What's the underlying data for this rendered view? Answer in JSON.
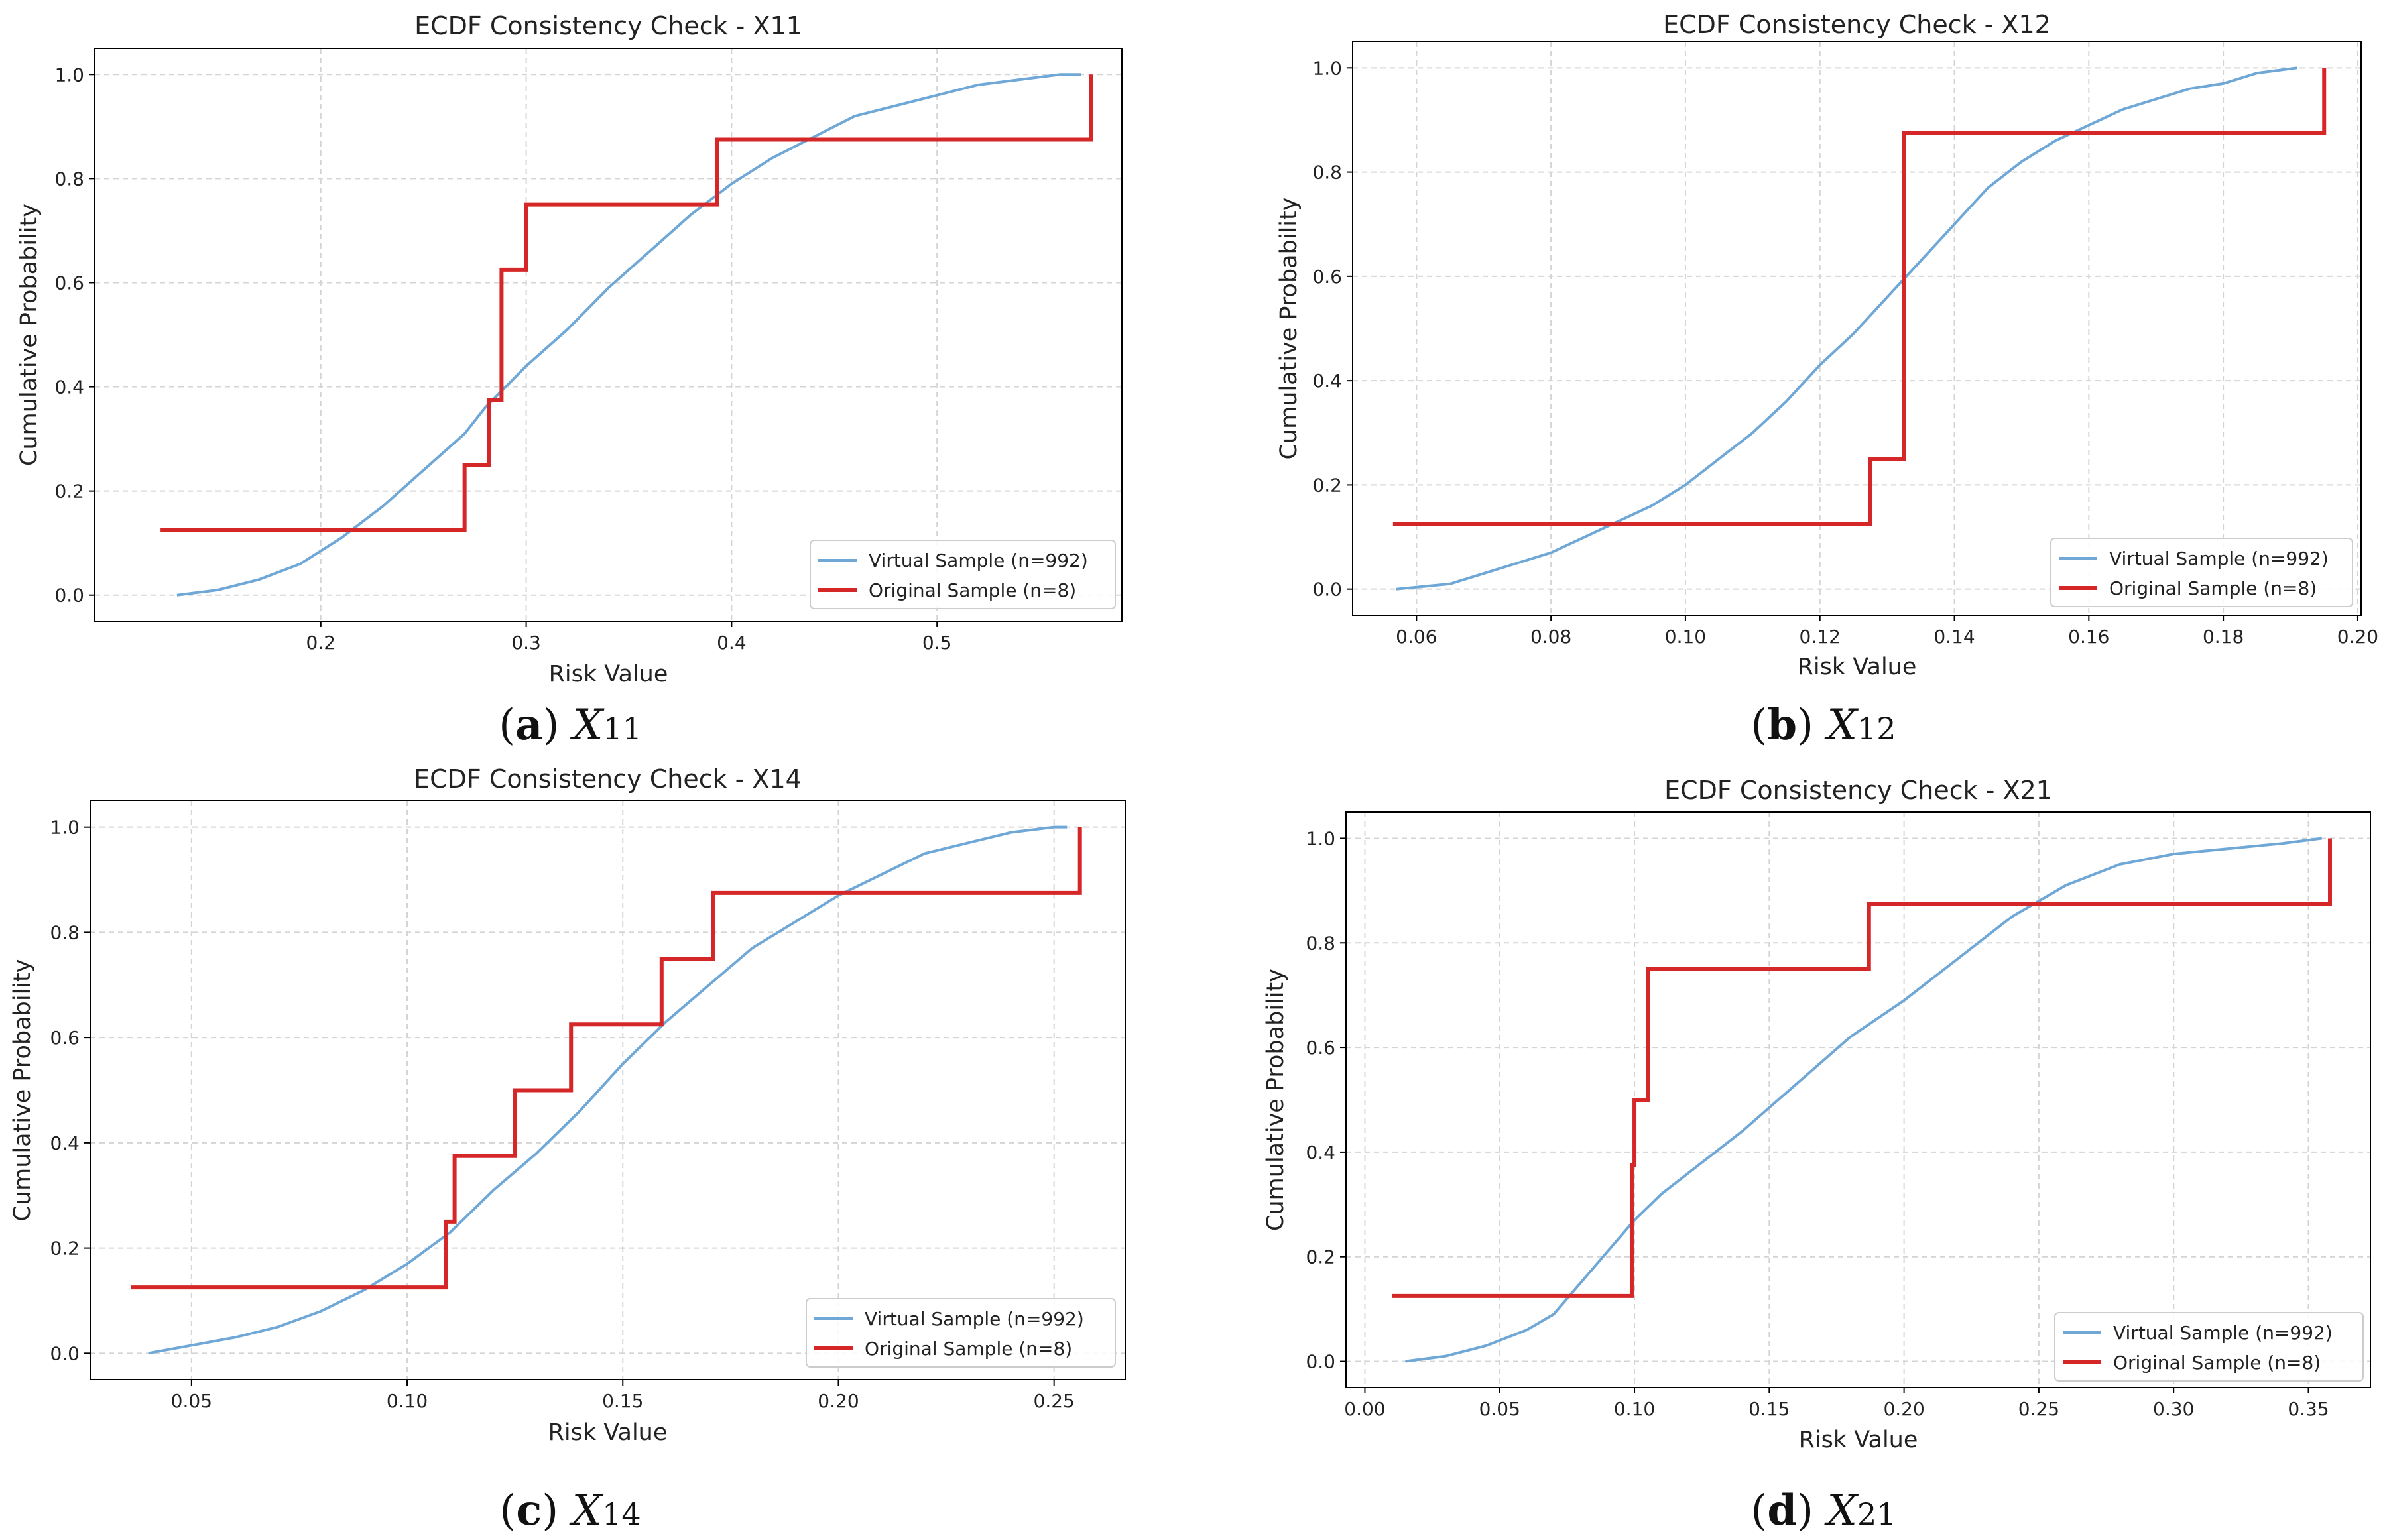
{
  "figure": {
    "panels": [
      {
        "caption": {
          "letter": "a",
          "variable": "X",
          "subscript": "11"
        }
      },
      {
        "caption": {
          "letter": "b",
          "variable": "X",
          "subscript": "12"
        }
      },
      {
        "caption": {
          "letter": "c",
          "variable": "X",
          "subscript": "14"
        }
      },
      {
        "caption": {
          "letter": "d",
          "variable": "X",
          "subscript": "21"
        }
      }
    ]
  },
  "colors": {
    "virtual": "#6fa8d6",
    "original": "#d62728",
    "grid": "#d4d4d4",
    "axes": "#000000"
  },
  "chart_data": [
    {
      "type": "line",
      "title": "ECDF Consistency Check - X11",
      "xlabel": "Risk Value",
      "ylabel": "Cumulative Probability",
      "xlim": [
        0.09,
        0.59
      ],
      "ylim": [
        -0.05,
        1.05
      ],
      "xticks": [
        0.2,
        0.3,
        0.4,
        0.5
      ],
      "xtick_labels": [
        "0.2",
        "0.3",
        "0.4",
        "0.5"
      ],
      "yticks": [
        0.0,
        0.2,
        0.4,
        0.6,
        0.8,
        1.0
      ],
      "ytick_labels": [
        "0.0",
        "0.2",
        "0.4",
        "0.6",
        "0.8",
        "1.0"
      ],
      "grid": true,
      "legend_position": "lower-right",
      "series": [
        {
          "name": "Virtual Sample (n=992)",
          "style": "line",
          "x": [
            0.13,
            0.15,
            0.17,
            0.19,
            0.21,
            0.23,
            0.25,
            0.27,
            0.28,
            0.3,
            0.32,
            0.34,
            0.36,
            0.38,
            0.4,
            0.42,
            0.44,
            0.46,
            0.48,
            0.5,
            0.52,
            0.54,
            0.56,
            0.57
          ],
          "y": [
            0.0,
            0.01,
            0.03,
            0.06,
            0.11,
            0.17,
            0.24,
            0.31,
            0.36,
            0.44,
            0.51,
            0.59,
            0.66,
            0.73,
            0.79,
            0.84,
            0.88,
            0.92,
            0.94,
            0.96,
            0.98,
            0.99,
            1.0,
            1.0
          ]
        },
        {
          "name": "Original Sample (n=8)",
          "style": "step",
          "x": [
            0.122,
            0.27,
            0.282,
            0.288,
            0.3,
            0.393,
            0.575
          ],
          "y": [
            0.125,
            0.25,
            0.375,
            0.625,
            0.75,
            0.875,
            1.0
          ]
        }
      ]
    },
    {
      "type": "line",
      "title": "ECDF Consistency Check - X12",
      "xlabel": "Risk Value",
      "ylabel": "Cumulative Probability",
      "xlim": [
        0.0505,
        0.2005
      ],
      "ylim": [
        -0.05,
        1.05
      ],
      "xticks": [
        0.06,
        0.08,
        0.1,
        0.12,
        0.14,
        0.16,
        0.18,
        0.2
      ],
      "xtick_labels": [
        "0.06",
        "0.08",
        "0.10",
        "0.12",
        "0.14",
        "0.16",
        "0.18",
        "0.20"
      ],
      "yticks": [
        0.0,
        0.2,
        0.4,
        0.6,
        0.8,
        1.0
      ],
      "ytick_labels": [
        "0.0",
        "0.2",
        "0.4",
        "0.6",
        "0.8",
        "1.0"
      ],
      "grid": true,
      "legend_position": "lower-right",
      "series": [
        {
          "name": "Virtual Sample (n=992)",
          "style": "line",
          "x": [
            0.057,
            0.065,
            0.07,
            0.075,
            0.08,
            0.085,
            0.09,
            0.095,
            0.1,
            0.105,
            0.11,
            0.115,
            0.12,
            0.125,
            0.13,
            0.135,
            0.14,
            0.145,
            0.15,
            0.155,
            0.16,
            0.165,
            0.17,
            0.175,
            0.18,
            0.185,
            0.191
          ],
          "y": [
            0.0,
            0.01,
            0.03,
            0.05,
            0.07,
            0.1,
            0.13,
            0.16,
            0.2,
            0.25,
            0.3,
            0.36,
            0.43,
            0.49,
            0.56,
            0.63,
            0.7,
            0.77,
            0.82,
            0.86,
            0.89,
            0.92,
            0.94,
            0.96,
            0.97,
            0.99,
            1.0
          ]
        },
        {
          "name": "Original Sample (n=8)",
          "style": "step",
          "x": [
            0.0565,
            0.1275,
            0.1325,
            0.195
          ],
          "y": [
            0.125,
            0.25,
            0.875,
            1.0
          ]
        }
      ]
    },
    {
      "type": "line",
      "title": "ECDF Consistency Check - X14",
      "xlabel": "Risk Value",
      "ylabel": "Cumulative Probability",
      "xlim": [
        0.0265,
        0.2665
      ],
      "ylim": [
        -0.05,
        1.05
      ],
      "xticks": [
        0.05,
        0.1,
        0.15,
        0.2,
        0.25
      ],
      "xtick_labels": [
        "0.05",
        "0.10",
        "0.15",
        "0.20",
        "0.25"
      ],
      "yticks": [
        0.0,
        0.2,
        0.4,
        0.6,
        0.8,
        1.0
      ],
      "ytick_labels": [
        "0.0",
        "0.2",
        "0.4",
        "0.6",
        "0.8",
        "1.0"
      ],
      "grid": true,
      "legend_position": "lower-right",
      "series": [
        {
          "name": "Virtual Sample (n=992)",
          "style": "line",
          "x": [
            0.04,
            0.05,
            0.06,
            0.07,
            0.08,
            0.09,
            0.1,
            0.11,
            0.12,
            0.13,
            0.14,
            0.15,
            0.16,
            0.17,
            0.18,
            0.19,
            0.2,
            0.21,
            0.22,
            0.23,
            0.24,
            0.25,
            0.253
          ],
          "y": [
            0.0,
            0.015,
            0.03,
            0.05,
            0.08,
            0.12,
            0.17,
            0.23,
            0.31,
            0.38,
            0.46,
            0.55,
            0.63,
            0.7,
            0.77,
            0.82,
            0.87,
            0.91,
            0.95,
            0.97,
            0.99,
            1.0,
            1.0
          ]
        },
        {
          "name": "Original Sample (n=8)",
          "style": "step",
          "x": [
            0.036,
            0.109,
            0.111,
            0.125,
            0.138,
            0.159,
            0.171,
            0.256
          ],
          "y": [
            0.125,
            0.25,
            0.375,
            0.5,
            0.625,
            0.75,
            0.875,
            1.0
          ]
        }
      ]
    },
    {
      "type": "line",
      "title": "ECDF Consistency Check - X21",
      "xlabel": "Risk Value",
      "ylabel": "Cumulative Probability",
      "xlim": [
        -0.007,
        0.373
      ],
      "ylim": [
        -0.05,
        1.05
      ],
      "xticks": [
        0.0,
        0.05,
        0.1,
        0.15,
        0.2,
        0.25,
        0.3,
        0.35
      ],
      "xtick_labels": [
        "0.00",
        "0.05",
        "0.10",
        "0.15",
        "0.20",
        "0.25",
        "0.30",
        "0.35"
      ],
      "yticks": [
        0.0,
        0.2,
        0.4,
        0.6,
        0.8,
        1.0
      ],
      "ytick_labels": [
        "0.0",
        "0.2",
        "0.4",
        "0.6",
        "0.8",
        "1.0"
      ],
      "grid": true,
      "legend_position": "lower-right",
      "series": [
        {
          "name": "Virtual Sample (n=992)",
          "style": "line",
          "x": [
            0.015,
            0.03,
            0.045,
            0.06,
            0.07,
            0.08,
            0.09,
            0.1,
            0.11,
            0.12,
            0.14,
            0.16,
            0.18,
            0.2,
            0.22,
            0.24,
            0.26,
            0.28,
            0.3,
            0.32,
            0.34,
            0.355
          ],
          "y": [
            0.0,
            0.01,
            0.03,
            0.06,
            0.09,
            0.15,
            0.21,
            0.27,
            0.32,
            0.36,
            0.44,
            0.53,
            0.62,
            0.69,
            0.77,
            0.85,
            0.91,
            0.95,
            0.97,
            0.98,
            0.99,
            1.0
          ]
        },
        {
          "name": "Original Sample (n=8)",
          "style": "step",
          "x": [
            0.01,
            0.099,
            0.1,
            0.103,
            0.105,
            0.187,
            0.358
          ],
          "y": [
            0.125,
            0.375,
            0.5,
            0.5,
            0.75,
            0.875,
            1.0
          ]
        }
      ]
    }
  ]
}
